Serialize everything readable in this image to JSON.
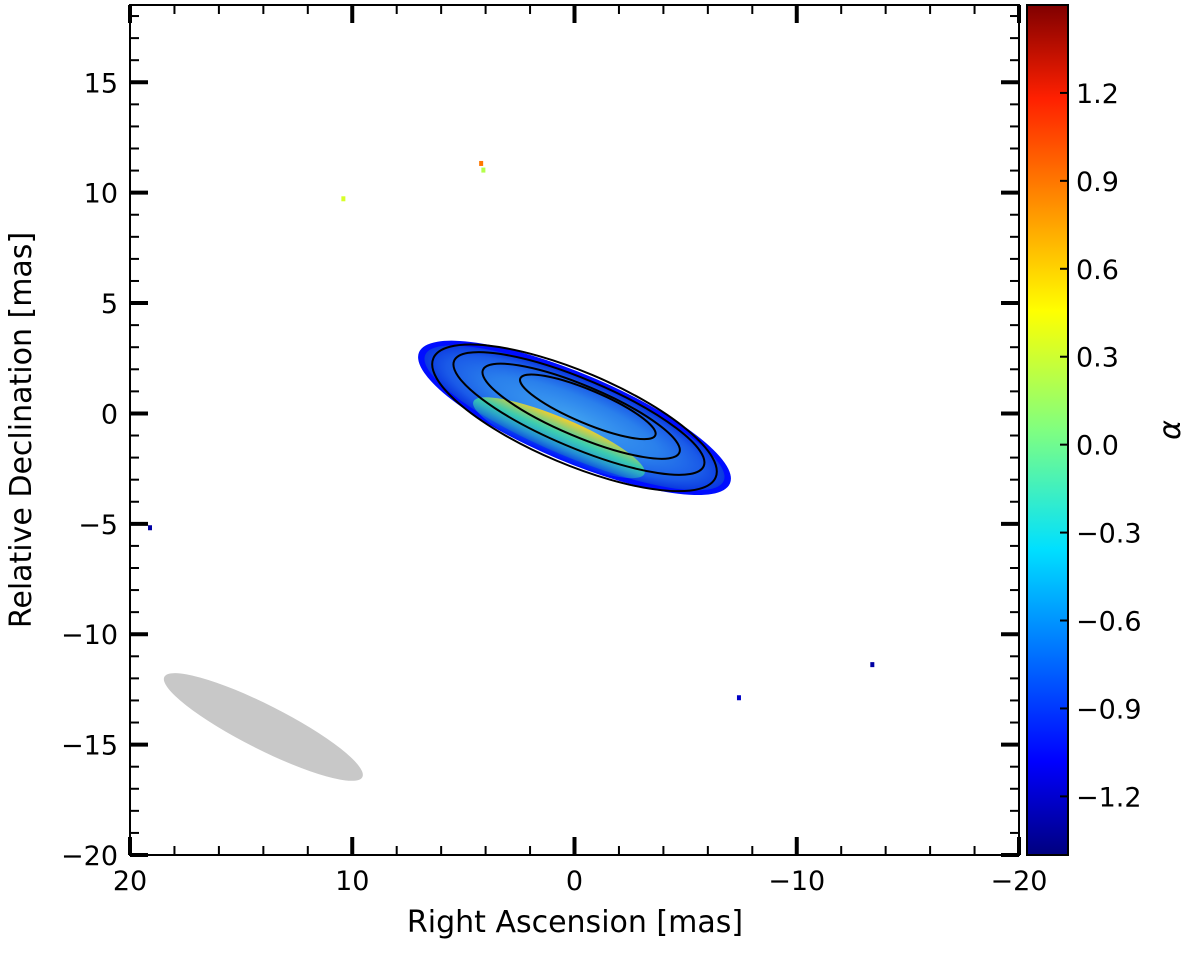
{
  "chart_data": {
    "type": "heatmap",
    "xlabel": "Right Ascension [mas]",
    "ylabel": "Relative Declination [mas]",
    "xlim": [
      20,
      -20
    ],
    "ylim": [
      -20,
      18.5
    ],
    "x_reversed": true,
    "xticks": [
      20,
      10,
      0,
      -10,
      -20
    ],
    "xtick_labels": [
      "20",
      "10",
      "0",
      "−10",
      "−20"
    ],
    "yticks": [
      15,
      10,
      5,
      0,
      -5,
      -10,
      -15,
      -20
    ],
    "ytick_labels": [
      "15",
      "10",
      "5",
      "0",
      "−5",
      "−10",
      "−15",
      "−20"
    ],
    "grid": false,
    "source": {
      "center": [
        0.0,
        -0.2
      ],
      "semi_major_mas": 7.6,
      "semi_minor_mas": 2.0,
      "position_angle_deg": 67,
      "alpha_core": -0.7,
      "alpha_edge": -1.0,
      "alpha_south_edge": 0.4
    },
    "contours": [
      {
        "level": 1,
        "center": [
          0.0,
          -0.2
        ],
        "a": 6.9,
        "b": 2.1
      },
      {
        "level": 2,
        "center": [
          -0.2,
          0.0
        ],
        "a": 6.1,
        "b": 1.55
      },
      {
        "level": 3,
        "center": [
          -0.3,
          0.1
        ],
        "a": 4.8,
        "b": 1.15
      },
      {
        "level": 4,
        "center": [
          -0.6,
          0.3
        ],
        "a": 3.3,
        "b": 0.75
      }
    ],
    "specks": [
      {
        "x": 4.2,
        "y": 11.3,
        "alpha": 0.8
      },
      {
        "x": 4.1,
        "y": 11.0,
        "alpha": 0.2
      },
      {
        "x": 10.4,
        "y": 9.7,
        "alpha": 0.3
      },
      {
        "x": 19.1,
        "y": -5.2,
        "alpha": -1.3
      },
      {
        "x": -13.4,
        "y": -11.4,
        "alpha": -1.3
      },
      {
        "x": -7.4,
        "y": -12.9,
        "alpha": -1.2
      }
    ],
    "beam": {
      "center": [
        14.0,
        -14.2
      ],
      "semi_major_mas": 5.0,
      "semi_minor_mas": 1.0,
      "position_angle_deg": 63,
      "color": "#c8c8c8"
    },
    "colorbar": {
      "label": "α",
      "min": -1.4,
      "max": 1.5,
      "colormap": "jet",
      "ticks": [
        1.2,
        0.9,
        0.6,
        0.3,
        0.0,
        -0.3,
        -0.6,
        -0.9,
        -1.2
      ],
      "tick_labels": [
        "1.2",
        "0.9",
        "0.6",
        "0.3",
        "0.0",
        "−0.3",
        "−0.6",
        "−0.9",
        "−1.2"
      ]
    }
  }
}
